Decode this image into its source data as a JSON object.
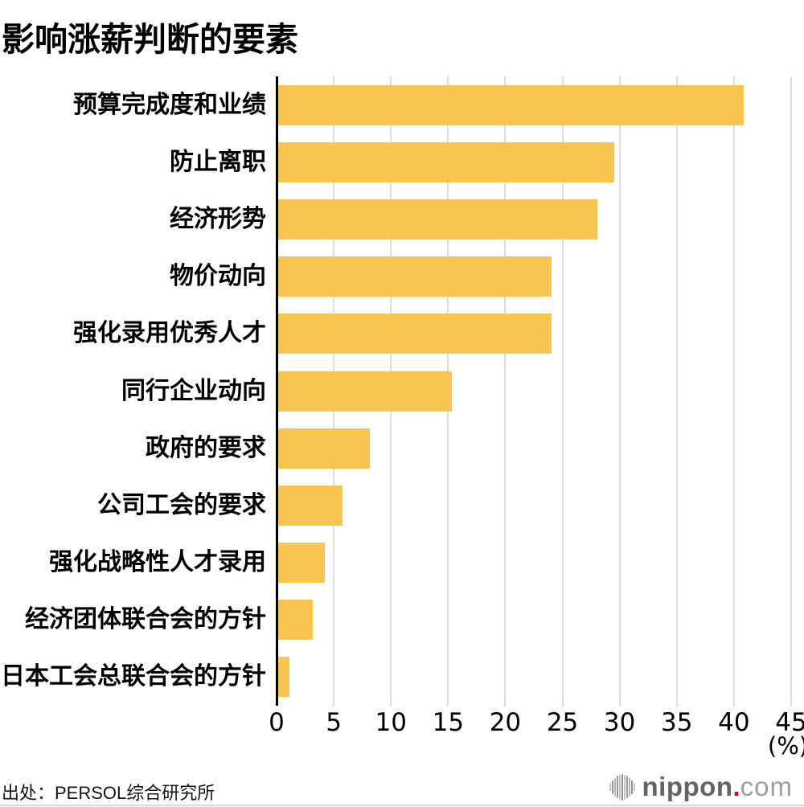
{
  "title": "影响涨薪判断的要素",
  "source": "出处：PERSOL综合研究所",
  "colors": {
    "bar": "#F8C54E",
    "grid": "#DDDDDD",
    "axis": "#000000",
    "logo_main": "#656464",
    "logo_dot": "#E60012",
    "logo_tld": "#9E9E9E"
  },
  "logo": {
    "icon": "nippon-soundwave-icon",
    "text_main": "nippon",
    "text_dot": ".",
    "text_tld": "com"
  },
  "chart_data": {
    "type": "bar",
    "orientation": "horizontal",
    "title": "影响涨薪判断的要素",
    "categories": [
      "预算完成度和业绩",
      "防止离职",
      "经济形势",
      "物价动向",
      "强化录用优秀人才",
      "同行企业动向",
      "政府的要求",
      "公司工会的要求",
      "强化战略性人才录用",
      "经济团体联合会的方针",
      "日本工会总联合会的方针"
    ],
    "values": [
      40.7,
      29.4,
      27.9,
      23.9,
      23.9,
      15.2,
      8.0,
      5.6,
      4.1,
      3.0,
      1.0
    ],
    "xlabel": "(%)",
    "unit_label": "(%)",
    "xlim": [
      0,
      45
    ],
    "xticks": [
      0,
      5,
      10,
      15,
      20,
      25,
      30,
      35,
      40,
      45
    ],
    "grid": true,
    "legend": false,
    "bar_color": "#F8C54E"
  }
}
